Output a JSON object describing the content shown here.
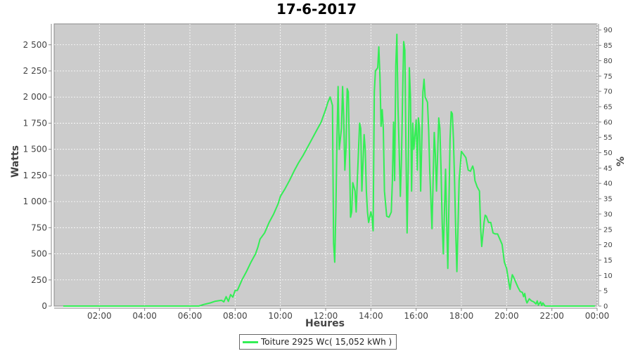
{
  "chart_data": {
    "type": "line",
    "title": "17-6-2017",
    "xlabel": "Heures",
    "ylabel": "Watts",
    "y2label": "%",
    "xlim": [
      0,
      24
    ],
    "ylim": [
      0,
      2700
    ],
    "y2lim": [
      0,
      92
    ],
    "x_ticks": [
      2,
      4,
      6,
      8,
      10,
      12,
      14,
      16,
      18,
      20,
      22,
      24
    ],
    "x_tick_labels": [
      "02:00",
      "04:00",
      "06:00",
      "08:00",
      "10:00",
      "12:00",
      "14:00",
      "16:00",
      "18:00",
      "20:00",
      "22:00",
      "00:00"
    ],
    "y_ticks": [
      0,
      250,
      500,
      750,
      1000,
      1250,
      1500,
      1750,
      2000,
      2250,
      2500
    ],
    "y_tick_labels": [
      "0",
      "250",
      "500",
      "750",
      "1 000",
      "1 250",
      "1 500",
      "1 750",
      "2 000",
      "2 250",
      "2 500"
    ],
    "y2_ticks": [
      0,
      5,
      10,
      15,
      20,
      25,
      30,
      35,
      40,
      45,
      50,
      55,
      60,
      65,
      70,
      75,
      80,
      85,
      90
    ],
    "y2_tick_labels": [
      "0",
      "5",
      "10",
      "15",
      "20",
      "25",
      "30",
      "35",
      "40",
      "45",
      "50",
      "55",
      "60",
      "65",
      "70",
      "75",
      "80",
      "85",
      "90"
    ],
    "grid": true,
    "legend_position": "bottom-center",
    "series": [
      {
        "name": "Toiture 2925 Wc( 15,052 kWh )",
        "color": "#33ee55",
        "points": [
          [
            0.4,
            0
          ],
          [
            6.4,
            0
          ],
          [
            6.6,
            15
          ],
          [
            6.9,
            30
          ],
          [
            7.1,
            45
          ],
          [
            7.4,
            55
          ],
          [
            7.5,
            40
          ],
          [
            7.6,
            90
          ],
          [
            7.7,
            45
          ],
          [
            7.8,
            110
          ],
          [
            7.9,
            85
          ],
          [
            8.0,
            150
          ],
          [
            8.1,
            150
          ],
          [
            8.2,
            200
          ],
          [
            8.3,
            250
          ],
          [
            8.5,
            330
          ],
          [
            8.7,
            420
          ],
          [
            8.9,
            500
          ],
          [
            9.0,
            560
          ],
          [
            9.1,
            640
          ],
          [
            9.3,
            700
          ],
          [
            9.5,
            800
          ],
          [
            9.7,
            880
          ],
          [
            9.9,
            980
          ],
          [
            10.0,
            1050
          ],
          [
            10.2,
            1120
          ],
          [
            10.4,
            1200
          ],
          [
            10.6,
            1290
          ],
          [
            10.8,
            1370
          ],
          [
            11.0,
            1440
          ],
          [
            11.2,
            1520
          ],
          [
            11.4,
            1600
          ],
          [
            11.6,
            1680
          ],
          [
            11.8,
            1760
          ],
          [
            12.0,
            1880
          ],
          [
            12.1,
            1950
          ],
          [
            12.2,
            2000
          ],
          [
            12.3,
            1920
          ],
          [
            12.35,
            600
          ],
          [
            12.4,
            420
          ],
          [
            12.45,
            900
          ],
          [
            12.5,
            1600
          ],
          [
            12.55,
            2100
          ],
          [
            12.6,
            1500
          ],
          [
            12.7,
            1700
          ],
          [
            12.75,
            2100
          ],
          [
            12.8,
            1800
          ],
          [
            12.85,
            1300
          ],
          [
            12.9,
            1500
          ],
          [
            12.95,
            2080
          ],
          [
            13.0,
            2050
          ],
          [
            13.05,
            1500
          ],
          [
            13.1,
            850
          ],
          [
            13.15,
            900
          ],
          [
            13.2,
            1180
          ],
          [
            13.3,
            1100
          ],
          [
            13.35,
            900
          ],
          [
            13.4,
            1200
          ],
          [
            13.5,
            1750
          ],
          [
            13.55,
            1700
          ],
          [
            13.6,
            1100
          ],
          [
            13.7,
            1640
          ],
          [
            13.75,
            1500
          ],
          [
            13.8,
            1100
          ],
          [
            13.85,
            900
          ],
          [
            13.9,
            800
          ],
          [
            14.0,
            900
          ],
          [
            14.05,
            850
          ],
          [
            14.1,
            720
          ],
          [
            14.15,
            2050
          ],
          [
            14.2,
            2250
          ],
          [
            14.3,
            2280
          ],
          [
            14.35,
            2480
          ],
          [
            14.4,
            2200
          ],
          [
            14.45,
            1720
          ],
          [
            14.5,
            1880
          ],
          [
            14.55,
            1700
          ],
          [
            14.6,
            1100
          ],
          [
            14.7,
            860
          ],
          [
            14.8,
            850
          ],
          [
            14.9,
            900
          ],
          [
            14.95,
            1200
          ],
          [
            15.0,
            1760
          ],
          [
            15.05,
            1200
          ],
          [
            15.1,
            2300
          ],
          [
            15.15,
            2600
          ],
          [
            15.2,
            1900
          ],
          [
            15.25,
            1500
          ],
          [
            15.3,
            1050
          ],
          [
            15.35,
            1400
          ],
          [
            15.4,
            2000
          ],
          [
            15.45,
            2530
          ],
          [
            15.5,
            2450
          ],
          [
            15.55,
            1500
          ],
          [
            15.6,
            700
          ],
          [
            15.65,
            1300
          ],
          [
            15.7,
            2280
          ],
          [
            15.75,
            2000
          ],
          [
            15.8,
            1100
          ],
          [
            15.85,
            1750
          ],
          [
            15.9,
            1500
          ],
          [
            16.0,
            1780
          ],
          [
            16.05,
            1300
          ],
          [
            16.1,
            1800
          ],
          [
            16.15,
            1700
          ],
          [
            16.2,
            1100
          ],
          [
            16.3,
            2050
          ],
          [
            16.35,
            2170
          ],
          [
            16.4,
            2000
          ],
          [
            16.5,
            1950
          ],
          [
            16.55,
            1700
          ],
          [
            16.6,
            1300
          ],
          [
            16.7,
            740
          ],
          [
            16.75,
            1200
          ],
          [
            16.8,
            1660
          ],
          [
            16.85,
            1450
          ],
          [
            16.9,
            1100
          ],
          [
            17.0,
            1800
          ],
          [
            17.05,
            1700
          ],
          [
            17.1,
            1300
          ],
          [
            17.15,
            800
          ],
          [
            17.2,
            500
          ],
          [
            17.25,
            900
          ],
          [
            17.3,
            1310
          ],
          [
            17.35,
            800
          ],
          [
            17.4,
            360
          ],
          [
            17.5,
            1600
          ],
          [
            17.55,
            1860
          ],
          [
            17.6,
            1840
          ],
          [
            17.65,
            1600
          ],
          [
            17.7,
            1200
          ],
          [
            17.75,
            700
          ],
          [
            17.8,
            330
          ],
          [
            17.9,
            1200
          ],
          [
            18.0,
            1480
          ],
          [
            18.1,
            1450
          ],
          [
            18.2,
            1420
          ],
          [
            18.3,
            1300
          ],
          [
            18.4,
            1290
          ],
          [
            18.5,
            1340
          ],
          [
            18.55,
            1300
          ],
          [
            18.6,
            1200
          ],
          [
            18.7,
            1140
          ],
          [
            18.8,
            1100
          ],
          [
            18.85,
            750
          ],
          [
            18.9,
            570
          ],
          [
            19.0,
            800
          ],
          [
            19.05,
            870
          ],
          [
            19.1,
            860
          ],
          [
            19.2,
            800
          ],
          [
            19.3,
            800
          ],
          [
            19.4,
            700
          ],
          [
            19.5,
            690
          ],
          [
            19.6,
            690
          ],
          [
            19.7,
            640
          ],
          [
            19.8,
            590
          ],
          [
            19.9,
            420
          ],
          [
            20.0,
            360
          ],
          [
            20.1,
            220
          ],
          [
            20.15,
            160
          ],
          [
            20.2,
            240
          ],
          [
            20.25,
            300
          ],
          [
            20.3,
            280
          ],
          [
            20.4,
            230
          ],
          [
            20.5,
            180
          ],
          [
            20.6,
            140
          ],
          [
            20.7,
            130
          ],
          [
            20.75,
            90
          ],
          [
            20.8,
            120
          ],
          [
            20.85,
            60
          ],
          [
            20.9,
            30
          ],
          [
            21.0,
            70
          ],
          [
            21.1,
            50
          ],
          [
            21.2,
            40
          ],
          [
            21.3,
            20
          ],
          [
            21.35,
            50
          ],
          [
            21.4,
            10
          ],
          [
            21.5,
            40
          ],
          [
            21.55,
            5
          ],
          [
            21.6,
            30
          ],
          [
            21.7,
            0
          ],
          [
            23.9,
            0
          ]
        ]
      }
    ]
  }
}
